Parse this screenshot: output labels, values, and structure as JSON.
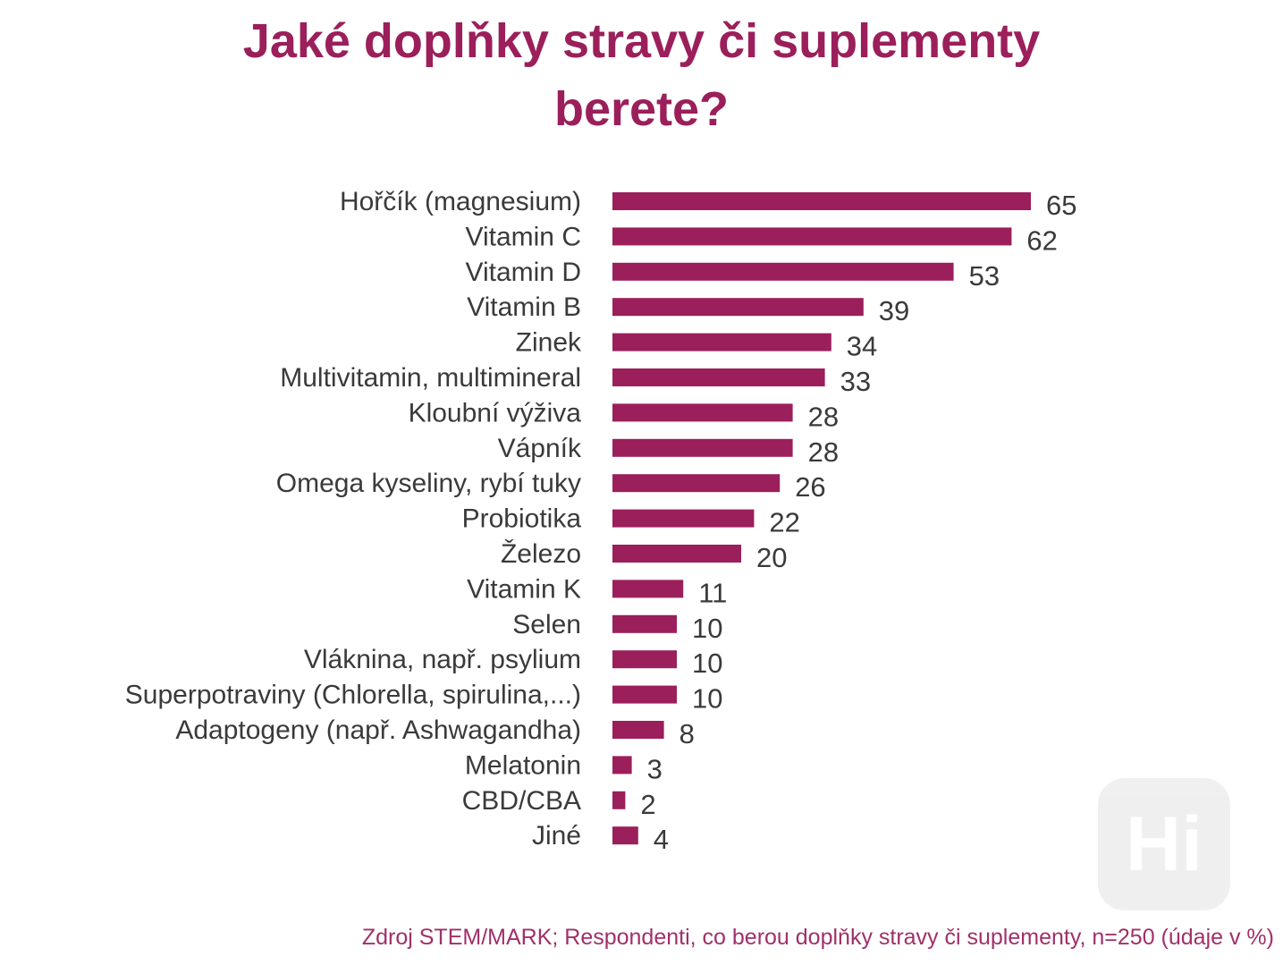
{
  "chart_data": {
    "type": "bar",
    "orientation": "horizontal",
    "title": [
      "Jaké doplňky stravy či suplementy",
      "berete?"
    ],
    "categories": [
      "Hořčík (magnesium)",
      "Vitamin C",
      "Vitamin D",
      "Vitamin B",
      "Zinek",
      "Multivitamin, multimineral",
      "Kloubní výživa",
      "Vápník",
      "Omega kyseliny, rybí tuky",
      "Probiotika",
      "Železo",
      "Vitamin K",
      "Selen",
      "Vláknina, např. psylium",
      "Superpotraviny (Chlorella, spirulina,...)",
      "Adaptogeny (např. Ashwagandha)",
      "Melatonin",
      "CBD/CBA",
      "Jiné"
    ],
    "values": [
      65,
      62,
      53,
      39,
      34,
      33,
      28,
      28,
      26,
      22,
      20,
      11,
      10,
      10,
      10,
      8,
      3,
      2,
      4
    ],
    "bar_color": "#9b1f5a",
    "xlim": [
      0,
      65
    ],
    "grid": false,
    "data_labels": true
  },
  "source": "Zdroj STEM/MARK; Respondenti, co berou doplňky stravy či suplementy, n=250 (údaje v %)",
  "watermark": {
    "text": "Hi",
    "color": "#eeeeee"
  }
}
